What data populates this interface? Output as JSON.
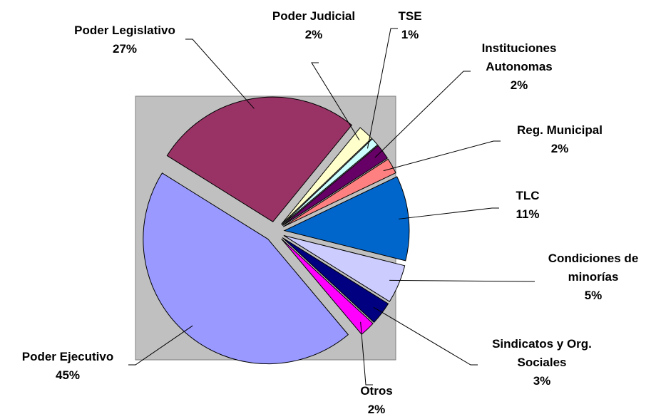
{
  "chart_data": {
    "type": "pie",
    "categories": [
      "Poder Legislativo",
      "Poder Judicial",
      "TSE",
      "Instituciones Autonomas",
      "Reg. Municipal",
      "TLC",
      "Condiciones de minorías",
      "Sindicatos y Org. Sociales",
      "Otros",
      "Poder Ejecutivo"
    ],
    "values": [
      27,
      2,
      1,
      2,
      2,
      11,
      5,
      3,
      2,
      45
    ],
    "value_labels": [
      "27%",
      "2%",
      "1%",
      "2%",
      "2%",
      "11%",
      "5%",
      "3%",
      "2%",
      "45%"
    ],
    "colors": [
      "#993366",
      "#FFFFCC",
      "#CCFFFF",
      "#660066",
      "#FF8080",
      "#0066CC",
      "#CCCCFF",
      "#000080",
      "#FF00FF",
      "#9999FF"
    ]
  }
}
